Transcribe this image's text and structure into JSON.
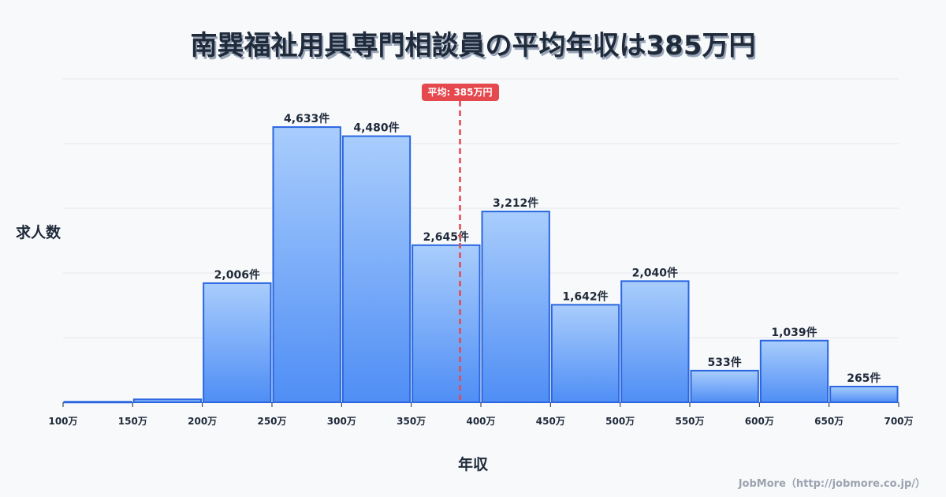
{
  "title": "南巽福祉用具専門相談員の平均年収は385万円",
  "mean_badge": "平均: 385万円",
  "credit": "JobMore（http://jobmore.co.jp/）",
  "colors": {
    "bar_top": "#a9cdfc",
    "bar_bottom": "#4f8ef5",
    "bar_stroke": "#2a66e0",
    "mean_line": "#e5484d",
    "grid": "#e5e7eb",
    "axis_text": "#1f2a3a"
  },
  "chart_data": {
    "type": "bar",
    "title": "南巽福祉用具専門相談員の平均年収は385万円",
    "xlabel": "年収",
    "ylabel": "求人数",
    "bin_edges": [
      100,
      150,
      200,
      250,
      300,
      350,
      400,
      450,
      500,
      550,
      600,
      650,
      700
    ],
    "tick_labels": [
      "100万",
      "150万",
      "200万",
      "250万",
      "300万",
      "350万",
      "400万",
      "450万",
      "500万",
      "550万",
      "600万",
      "650万",
      "700万"
    ],
    "categories": [
      "100-150万",
      "150-200万",
      "200-250万",
      "250-300万",
      "300-350万",
      "350-400万",
      "400-450万",
      "450-500万",
      "500-550万",
      "550-600万",
      "600-650万",
      "650-700万"
    ],
    "values": [
      10,
      50,
      2006,
      4633,
      4480,
      2645,
      3212,
      1642,
      2040,
      533,
      1039,
      265
    ],
    "value_labels": [
      "",
      "",
      "2,006件",
      "4,633件",
      "4,480件",
      "2,645件",
      "3,212件",
      "1,642件",
      "2,040件",
      "533件",
      "1,039件",
      "265件"
    ],
    "mean": 385,
    "mean_label": "平均: 385万円",
    "ylim": [
      0,
      5444
    ],
    "grid": true,
    "legend": null
  }
}
